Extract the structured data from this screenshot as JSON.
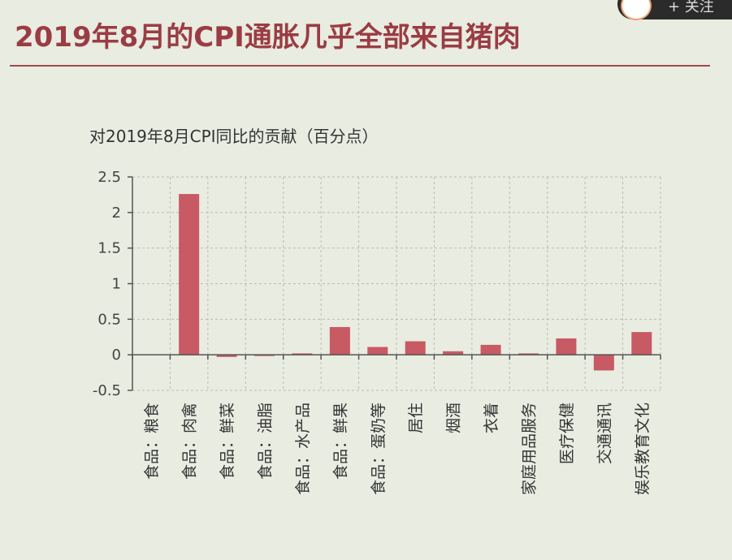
{
  "page": {
    "title": "2019年8月的CPI通胀几乎全部来自猪肉",
    "follow_label": "+ 关注"
  },
  "colors": {
    "bar": "#c75a63",
    "title": "#9a3c44",
    "grid": "#b9bdb0",
    "axis": "#555555",
    "background": "#e9ece0"
  },
  "chart_data": {
    "type": "bar",
    "title": "对2019年8月CPI同比的贡献（百分点）",
    "xlabel": "",
    "ylabel": "",
    "ylim": [
      -0.5,
      2.5
    ],
    "yticks": [
      2.5,
      2,
      1.5,
      1,
      0.5,
      0,
      -0.5
    ],
    "ytick_labels": [
      "2.5",
      "2",
      "1.5",
      "1",
      "0.5",
      "0",
      "-0.5"
    ],
    "grid": true,
    "categories": [
      "食品：粮食",
      "食品：肉禽",
      "食品：鲜菜",
      "食品：油脂",
      "食品：水产品",
      "食品：鲜果",
      "食品：蛋奶等",
      "居住",
      "烟酒",
      "衣着",
      "家庭用品服务",
      "医疗保健",
      "交通通讯",
      "娱乐教育文化"
    ],
    "values": [
      0.0,
      2.26,
      -0.03,
      -0.01,
      0.02,
      0.39,
      0.11,
      0.19,
      0.05,
      0.14,
      0.02,
      0.23,
      -0.22,
      0.32
    ]
  }
}
